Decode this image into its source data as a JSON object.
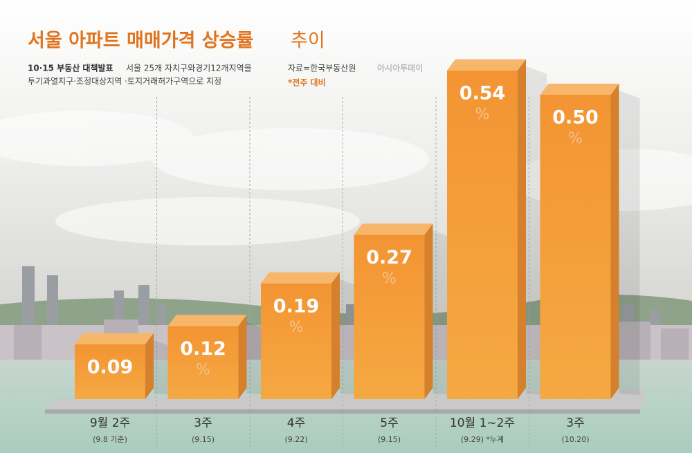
{
  "chart_data": {
    "type": "bar",
    "title": "서울 아파트 매매가격 상승률",
    "title_suffix": "추이",
    "note_heading": "10·15 부동산 대책발표",
    "note_lines": [
      "서울 25개 자치구와경기12개지역을",
      "투기과열지구·조정대상지역 ·토지거래허가구역으로 지정"
    ],
    "source": "자료=한국부동산원",
    "basis": "*전주 대비",
    "watermark": "아시아투데이",
    "categories": [
      "9월 2주",
      "3주",
      "4주",
      "5주",
      "10월 1~2주",
      "3주"
    ],
    "category_notes": [
      "(9.8 기준)",
      "(9.15)",
      "(9.22)",
      "(9.15)",
      "(9.29) *누계",
      "(10.20)"
    ],
    "values": [
      0.09,
      0.12,
      0.19,
      0.27,
      0.54,
      0.5
    ],
    "value_labels": [
      "0.09",
      "0.12",
      "0.19",
      "0.27",
      "0.54",
      "0.50"
    ],
    "value_unit": "%",
    "color": "#f39a35"
  }
}
